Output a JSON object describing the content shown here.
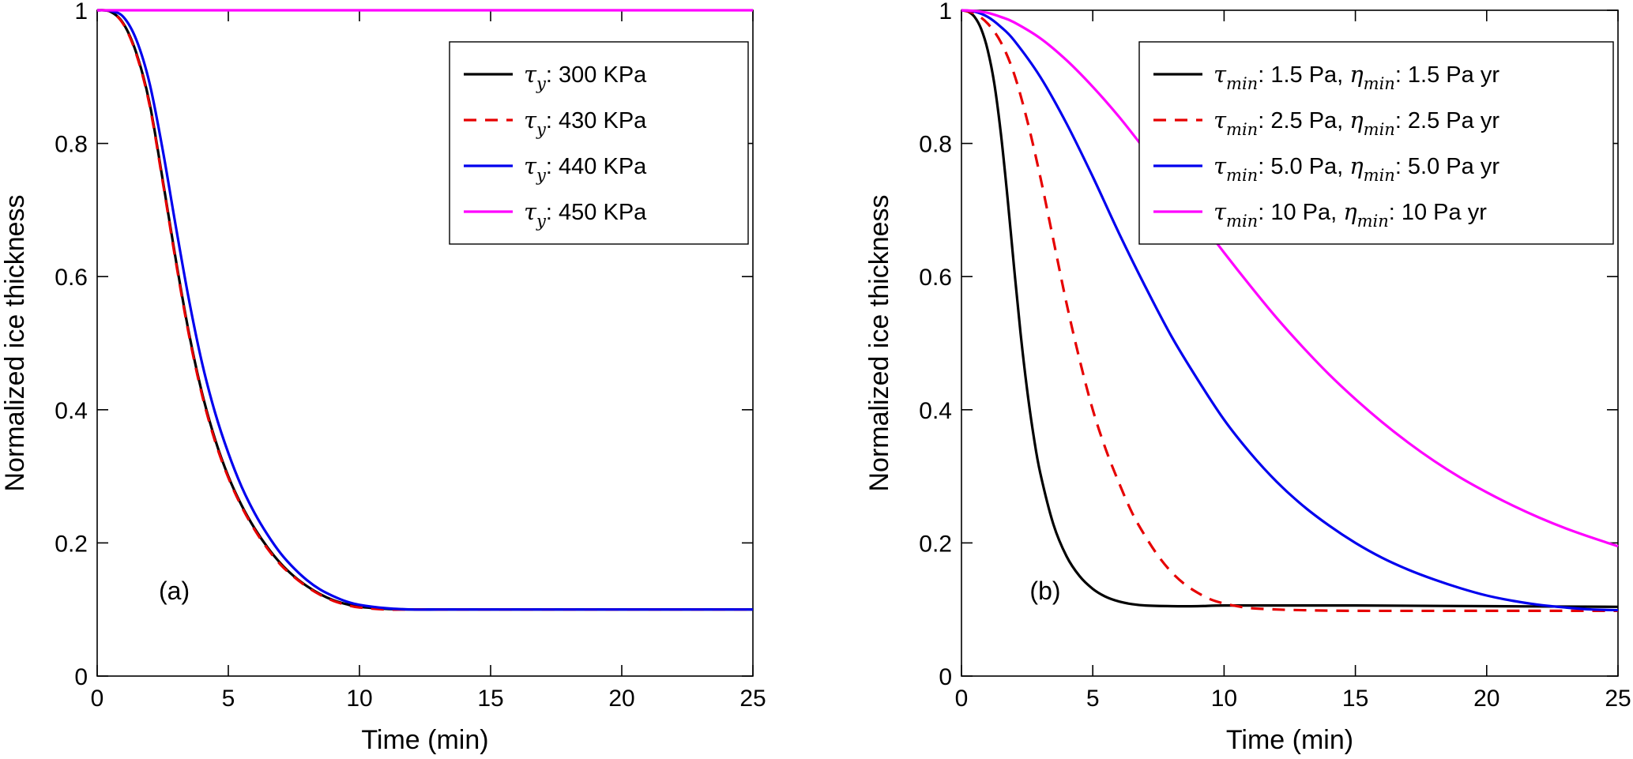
{
  "figure": {
    "background": "#ffffff",
    "axis_color": "#000000",
    "text_color": "#000000"
  },
  "chart_data": [
    {
      "id": "a",
      "type": "line",
      "panel_label": "(a)",
      "xlabel": "Time (min)",
      "ylabel": "Normalized ice thickness",
      "xlim": [
        0,
        25
      ],
      "ylim": [
        0,
        1
      ],
      "xticks": [
        0,
        5,
        10,
        15,
        20,
        25
      ],
      "xticklabels": [
        "0",
        "5",
        "10",
        "15",
        "20",
        "25"
      ],
      "yticks": [
        0,
        0.2,
        0.4,
        0.6,
        0.8,
        1
      ],
      "yticklabels": [
        "0",
        "0.2",
        "0.4",
        "0.6",
        "0.8",
        "1"
      ],
      "grid": false,
      "legend_position": "top-right",
      "series": [
        {
          "label": "τ_{y}: 300 KPa",
          "color": "#000000",
          "style": "solid",
          "x": [
            0,
            0.5,
            1,
            1.5,
            2,
            2.5,
            3,
            3.5,
            4,
            4.5,
            5,
            5.5,
            6,
            6.5,
            7,
            7.5,
            8,
            8.5,
            9,
            9.5,
            10,
            11,
            12,
            13,
            14,
            15,
            17,
            20,
            25
          ],
          "y": [
            1,
            0.998,
            0.98,
            0.935,
            0.86,
            0.745,
            0.625,
            0.515,
            0.425,
            0.355,
            0.3,
            0.257,
            0.222,
            0.193,
            0.169,
            0.15,
            0.135,
            0.123,
            0.114,
            0.108,
            0.104,
            0.101,
            0.1,
            0.1,
            0.1,
            0.1,
            0.1,
            0.1,
            0.1
          ]
        },
        {
          "label": "τ_{y}: 430 KPa",
          "color": "#e60000",
          "style": "dashed",
          "x": [
            0,
            0.5,
            1,
            1.5,
            2,
            2.5,
            3,
            3.5,
            4,
            4.5,
            5,
            5.5,
            6,
            6.5,
            7,
            7.5,
            8,
            8.5,
            9,
            9.5,
            10,
            11,
            12,
            13,
            14,
            15,
            17,
            20,
            25
          ],
          "y": [
            1,
            0.998,
            0.979,
            0.933,
            0.857,
            0.742,
            0.622,
            0.512,
            0.422,
            0.352,
            0.298,
            0.255,
            0.22,
            0.191,
            0.167,
            0.149,
            0.134,
            0.122,
            0.113,
            0.107,
            0.103,
            0.1,
            0.1,
            0.1,
            0.1,
            0.1,
            0.1,
            0.1,
            0.1
          ]
        },
        {
          "label": "τ_{y}: 440 KPa",
          "color": "#0000ee",
          "style": "solid",
          "x": [
            0,
            0.5,
            1,
            1.5,
            2,
            2.5,
            3,
            3.5,
            4,
            4.5,
            5,
            5.5,
            6,
            6.5,
            7,
            7.5,
            8,
            8.5,
            9,
            9.5,
            10,
            11,
            12,
            13,
            14,
            15,
            17,
            20,
            25
          ],
          "y": [
            1,
            0.999,
            0.99,
            0.955,
            0.89,
            0.79,
            0.675,
            0.565,
            0.47,
            0.395,
            0.335,
            0.285,
            0.245,
            0.212,
            0.184,
            0.162,
            0.144,
            0.13,
            0.12,
            0.112,
            0.107,
            0.102,
            0.1,
            0.1,
            0.1,
            0.1,
            0.1,
            0.1,
            0.1
          ]
        },
        {
          "label": "τ_{y}: 450 KPa",
          "color": "#ff00ff",
          "style": "solid",
          "x": [
            0,
            25
          ],
          "y": [
            1,
            1
          ]
        }
      ]
    },
    {
      "id": "b",
      "type": "line",
      "panel_label": "(b)",
      "xlabel": "Time (min)",
      "ylabel": "Normalized ice thickness",
      "xlim": [
        0,
        25
      ],
      "ylim": [
        0,
        1
      ],
      "xticks": [
        0,
        5,
        10,
        15,
        20,
        25
      ],
      "xticklabels": [
        "0",
        "5",
        "10",
        "15",
        "20",
        "25"
      ],
      "yticks": [
        0,
        0.2,
        0.4,
        0.6,
        0.8,
        1
      ],
      "yticklabels": [
        "0",
        "0.2",
        "0.4",
        "0.6",
        "0.8",
        "1"
      ],
      "grid": false,
      "legend_position": "top-right",
      "series": [
        {
          "label": "τ_{min}: 1.5 Pa, η_{min}: 1.5 Pa yr",
          "color": "#000000",
          "style": "solid",
          "x": [
            0,
            0.25,
            0.5,
            0.75,
            1,
            1.25,
            1.5,
            1.75,
            2,
            2.25,
            2.5,
            2.75,
            3,
            3.5,
            4,
            4.5,
            5,
            5.5,
            6,
            6.5,
            7,
            8,
            9,
            10,
            12,
            15,
            20,
            25
          ],
          "y": [
            1,
            0.998,
            0.99,
            0.972,
            0.94,
            0.89,
            0.815,
            0.72,
            0.615,
            0.515,
            0.43,
            0.36,
            0.305,
            0.228,
            0.18,
            0.15,
            0.131,
            0.119,
            0.112,
            0.108,
            0.106,
            0.105,
            0.105,
            0.106,
            0.106,
            0.106,
            0.105,
            0.104
          ]
        },
        {
          "label": "τ_{min}: 2.5 Pa, η_{min}: 2.5 Pa yr",
          "color": "#e60000",
          "style": "dashed",
          "x": [
            0,
            0.5,
            1,
            1.5,
            2,
            2.5,
            3,
            3.5,
            4,
            4.5,
            5,
            5.5,
            6,
            6.5,
            7,
            7.5,
            8,
            8.5,
            9,
            9.5,
            10,
            10.5,
            11,
            12,
            13,
            15,
            20,
            25
          ],
          "y": [
            1,
            0.995,
            0.98,
            0.952,
            0.905,
            0.835,
            0.75,
            0.655,
            0.56,
            0.475,
            0.4,
            0.34,
            0.29,
            0.245,
            0.21,
            0.18,
            0.156,
            0.138,
            0.125,
            0.115,
            0.109,
            0.105,
            0.102,
            0.1,
            0.099,
            0.098,
            0.098,
            0.098
          ]
        },
        {
          "label": "τ_{min}: 5.0 Pa, η_{min}: 5.0 Pa yr",
          "color": "#0000ee",
          "style": "solid",
          "x": [
            0,
            0.5,
            1,
            1.5,
            2,
            3,
            4,
            5,
            6,
            7,
            8,
            9,
            10,
            11,
            12,
            13,
            14,
            15,
            16,
            17,
            18,
            19,
            20,
            21,
            22,
            23,
            24,
            25
          ],
          "y": [
            1,
            0.998,
            0.99,
            0.975,
            0.955,
            0.9,
            0.83,
            0.75,
            0.665,
            0.585,
            0.51,
            0.445,
            0.385,
            0.335,
            0.292,
            0.256,
            0.226,
            0.2,
            0.178,
            0.16,
            0.145,
            0.132,
            0.121,
            0.113,
            0.107,
            0.103,
            0.1,
            0.099
          ]
        },
        {
          "label": "τ_{min}: 10 Pa, η_{min}: 10 Pa yr",
          "color": "#ff00ff",
          "style": "solid",
          "x": [
            0,
            0.5,
            1,
            1.5,
            2,
            3,
            4,
            5,
            6,
            7,
            8,
            9,
            10,
            11,
            12,
            13,
            14,
            15,
            16,
            17,
            18,
            19,
            20,
            21,
            22,
            23,
            24,
            25
          ],
          "y": [
            1,
            0.999,
            0.996,
            0.99,
            0.982,
            0.958,
            0.925,
            0.885,
            0.84,
            0.79,
            0.74,
            0.688,
            0.636,
            0.586,
            0.538,
            0.494,
            0.453,
            0.416,
            0.382,
            0.351,
            0.323,
            0.298,
            0.276,
            0.256,
            0.238,
            0.222,
            0.208,
            0.195
          ]
        }
      ]
    }
  ]
}
